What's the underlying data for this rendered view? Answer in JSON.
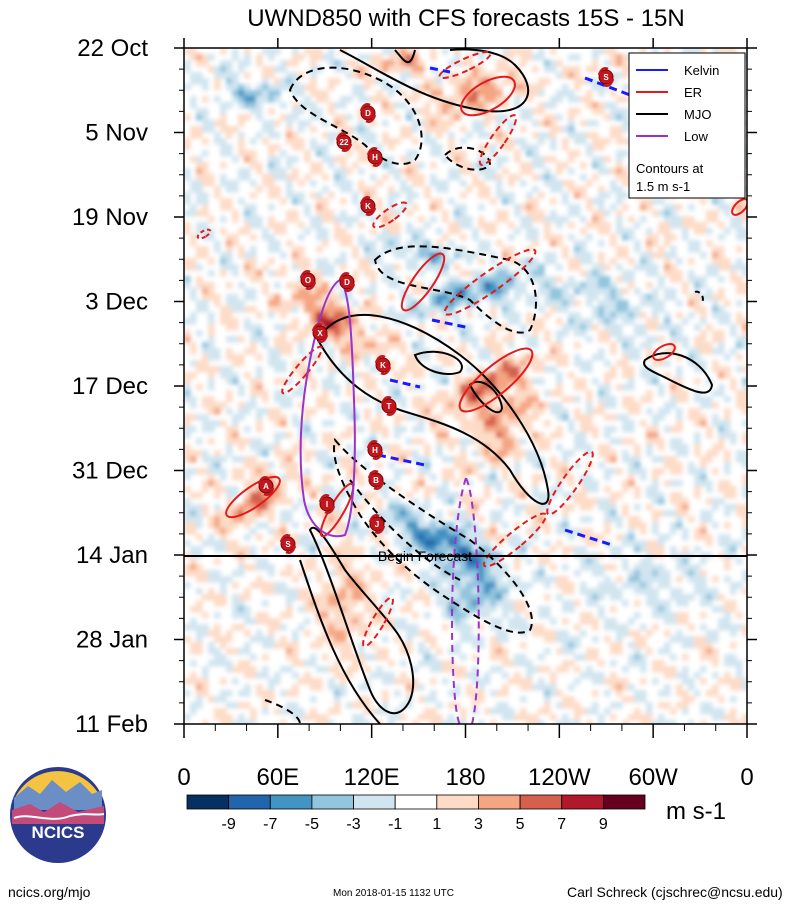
{
  "chart_data": {
    "type": "heatmap",
    "title": "UWND850 with CFS forecasts  15S - 15N",
    "ylabels": [
      "22 Oct",
      "5 Nov",
      "19 Nov",
      "3 Dec",
      "17 Dec",
      "31 Dec",
      "14 Jan",
      "28 Jan",
      "11 Feb"
    ],
    "xlabels": [
      "0",
      "60E",
      "120E",
      "180",
      "120W",
      "60W",
      "0"
    ],
    "x_range_deg": [
      0,
      360
    ],
    "colorbar": {
      "ticks": [
        "-9",
        "-7",
        "-5",
        "-3",
        "-1",
        "1",
        "3",
        "5",
        "7",
        "9"
      ],
      "colors": [
        "#053061",
        "#2166ac",
        "#4393c3",
        "#92c5de",
        "#d1e5f0",
        "#ffffff",
        "#fddbc7",
        "#f4a582",
        "#d6604d",
        "#b2182b",
        "#67001f"
      ],
      "unit": "m s-1"
    },
    "legend": {
      "items": [
        {
          "label": "Kelvin",
          "color": "#1a1aff"
        },
        {
          "label": "ER",
          "color": "#e41a1c"
        },
        {
          "label": "MJO",
          "color": "#000000"
        },
        {
          "label": "Low",
          "color": "#9933cc"
        }
      ],
      "note_line1": "Contours at",
      "note_line2": "1.5 m s-1"
    },
    "forecast_label": "Begin Forecast",
    "forecast_date": "14 Jan",
    "storm_labels": [
      "S",
      "D",
      "22",
      "H",
      "K",
      "O",
      "D",
      "X",
      "K",
      "T",
      "H",
      "B",
      "A",
      "I",
      "J",
      "S"
    ]
  },
  "org": {
    "logo_text": "NCICS"
  },
  "footer": {
    "left": "ncics.org/mjo",
    "mid": "Mon 2018-01-15 1132 UTC",
    "right": "Carl Schreck (cjschrec@ncsu.edu)"
  }
}
